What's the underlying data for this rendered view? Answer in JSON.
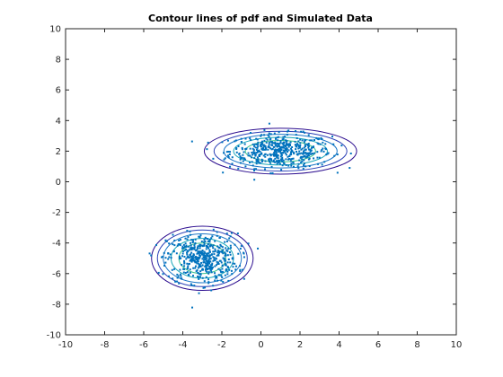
{
  "chart_data": {
    "type": "scatter",
    "title": "Contour lines of pdf and Simulated Data",
    "xlabel": "",
    "ylabel": "",
    "xlim": [
      -10,
      10
    ],
    "ylim": [
      -10,
      10
    ],
    "xticks": [
      -10,
      -8,
      -6,
      -4,
      -2,
      0,
      2,
      4,
      6,
      8,
      10
    ],
    "yticks": [
      -10,
      -8,
      -6,
      -4,
      -2,
      0,
      2,
      4,
      6,
      8,
      10
    ],
    "grid": false,
    "colors": {
      "points": "#0072bd",
      "contours": [
        "#2c0d8f",
        "#2a3fb6",
        "#1f78c8",
        "#1aa8b8",
        "#3cc28c"
      ]
    },
    "clusters": [
      {
        "mean": [
          1.0,
          2.0
        ],
        "std": [
          1.3,
          0.55
        ],
        "count": 500
      },
      {
        "mean": [
          -3.0,
          -5.0
        ],
        "std": [
          0.9,
          0.8
        ],
        "count": 500
      }
    ],
    "contour_levels": [
      {
        "cluster": 0,
        "rx": [
          3.9,
          3.4,
          2.9,
          2.4,
          1.8
        ],
        "ry": [
          1.5,
          1.3,
          1.1,
          0.9,
          0.7
        ]
      },
      {
        "cluster": 1,
        "rx": [
          2.6,
          2.3,
          2.0,
          1.6,
          1.2
        ],
        "ry": [
          2.1,
          1.85,
          1.6,
          1.3,
          1.0
        ]
      }
    ]
  }
}
